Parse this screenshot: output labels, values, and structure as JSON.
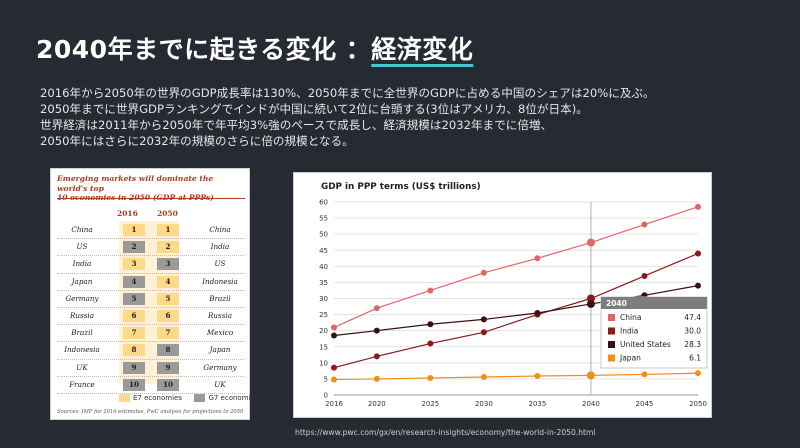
{
  "slide": {
    "title_prefix": "2040年までに起きる変化 ：",
    "title_highlight": "経済変化",
    "description_lines": [
      "2016年から2050年の世界のGDP成長率は130%、2050年までに全世界のGDPに占める中国のシェアは20%に及ぶ。",
      "2050年までに世界GDPランキングでインドが中国に続いて2位に台頭する(3位はアメリカ、8位が日本)。",
      "世界経済は2011年から2050年で年平均3%強のペースで成長し、経済規模は2032年までに倍増、",
      "2050年にはさらに2032年の規模のさらに倍の規模となる。"
    ],
    "source_url": "https://www.pwc.com/gx/en/research-insights/economy/the-world-in-2050.html"
  },
  "ranking_table": {
    "title_line1": "Emerging markets will dominate the world's top",
    "title_line2": "10 economies in 2050 (GDP at PPPs)",
    "col_2016": "2016",
    "col_2050": "2050",
    "rows": [
      {
        "c2016": "China",
        "r16": "1",
        "g16": "E7",
        "r50": "1",
        "g50": "E7",
        "c2050": "China"
      },
      {
        "c2016": "US",
        "r16": "2",
        "g16": "G7",
        "r50": "2",
        "g50": "E7",
        "c2050": "India"
      },
      {
        "c2016": "India",
        "r16": "3",
        "g16": "E7",
        "r50": "3",
        "g50": "G7",
        "c2050": "US"
      },
      {
        "c2016": "Japan",
        "r16": "4",
        "g16": "G7",
        "r50": "4",
        "g50": "E7",
        "c2050": "Indonesia"
      },
      {
        "c2016": "Germany",
        "r16": "5",
        "g16": "G7",
        "r50": "5",
        "g50": "E7",
        "c2050": "Brazil"
      },
      {
        "c2016": "Russia",
        "r16": "6",
        "g16": "E7",
        "r50": "6",
        "g50": "E7",
        "c2050": "Russia"
      },
      {
        "c2016": "Brazil",
        "r16": "7",
        "g16": "E7",
        "r50": "7",
        "g50": "E7",
        "c2050": "Mexico"
      },
      {
        "c2016": "Indonesia",
        "r16": "8",
        "g16": "E7",
        "r50": "8",
        "g50": "G7",
        "c2050": "Japan"
      },
      {
        "c2016": "UK",
        "r16": "9",
        "g16": "G7",
        "r50": "9",
        "g50": "G7",
        "c2050": "Germany"
      },
      {
        "c2016": "France",
        "r16": "10",
        "g16": "G7",
        "r50": "10",
        "g50": "G7",
        "c2050": "UK"
      }
    ],
    "legend_e7": "E7 economies",
    "legend_g7": "G7 economies",
    "colors": {
      "e7": "#ffd98a",
      "g7": "#9a9a9a"
    },
    "source": "Sources: IMF for 2016 estimates, PwC analysis for projections to 2050"
  },
  "chart_data": {
    "type": "line",
    "title": "GDP in PPP terms (US$ trillions)",
    "x": [
      2016,
      2020,
      2025,
      2030,
      2035,
      2040,
      2045,
      2050
    ],
    "ylim": [
      0,
      60
    ],
    "yticks": [
      0,
      5,
      10,
      15,
      20,
      25,
      30,
      35,
      40,
      45,
      50,
      55,
      60
    ],
    "series": [
      {
        "name": "China",
        "color": "#e06666",
        "values": [
          21,
          27,
          32.5,
          38,
          42.5,
          47.4,
          53,
          58.5
        ]
      },
      {
        "name": "India",
        "color": "#8b1a1a",
        "values": [
          8.5,
          12,
          16,
          19.5,
          25,
          30.0,
          37,
          44
        ]
      },
      {
        "name": "United States",
        "color": "#3b1010",
        "values": [
          18.5,
          20,
          22,
          23.5,
          25.5,
          28.3,
          31,
          34
        ]
      },
      {
        "name": "Japan",
        "color": "#f28c1a",
        "values": [
          4.8,
          5,
          5.3,
          5.6,
          5.9,
          6.1,
          6.4,
          6.8
        ]
      }
    ],
    "highlight_x": 2040,
    "tooltip": {
      "header": "2040",
      "rows": [
        {
          "name": "China",
          "value": "47.4"
        },
        {
          "name": "India",
          "value": "30.0"
        },
        {
          "name": "United States",
          "value": "28.3"
        },
        {
          "name": "Japan",
          "value": "6.1"
        }
      ]
    }
  }
}
